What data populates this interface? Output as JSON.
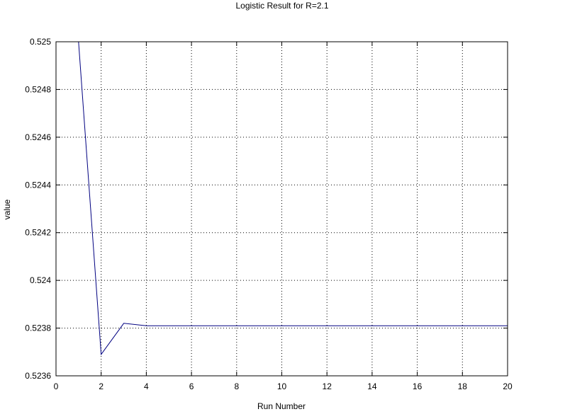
{
  "chart_data": {
    "type": "line",
    "title": "Logistic Result for R=2.1",
    "xlabel": "Run Number",
    "ylabel": "value",
    "xlim": [
      0,
      20
    ],
    "ylim": [
      0.5236,
      0.525
    ],
    "xticks": [
      0,
      2,
      4,
      6,
      8,
      10,
      12,
      14,
      16,
      18,
      20
    ],
    "xtick_labels": [
      "0",
      "2",
      "4",
      "6",
      "8",
      "10",
      "12",
      "14",
      "16",
      "18",
      "20"
    ],
    "yticks": [
      0.5236,
      0.5238,
      0.524,
      0.5242,
      0.5244,
      0.5246,
      0.5248,
      0.525
    ],
    "ytick_labels": [
      "0.5236",
      "0.5238",
      "0.524",
      "0.5242",
      "0.5244",
      "0.5246",
      "0.5248",
      "0.525"
    ],
    "grid": true,
    "series_color": "#000080",
    "series": [
      {
        "x": [
          1,
          2,
          3,
          4,
          5,
          6,
          7,
          8,
          9,
          10,
          11,
          12,
          13,
          14,
          15,
          16,
          17,
          18,
          19,
          20
        ],
        "values": [
          0.525,
          0.52369,
          0.52382,
          0.52381,
          0.52381,
          0.52381,
          0.52381,
          0.52381,
          0.52381,
          0.52381,
          0.52381,
          0.52381,
          0.52381,
          0.52381,
          0.52381,
          0.52381,
          0.52381,
          0.52381,
          0.52381,
          0.52381
        ]
      }
    ]
  }
}
